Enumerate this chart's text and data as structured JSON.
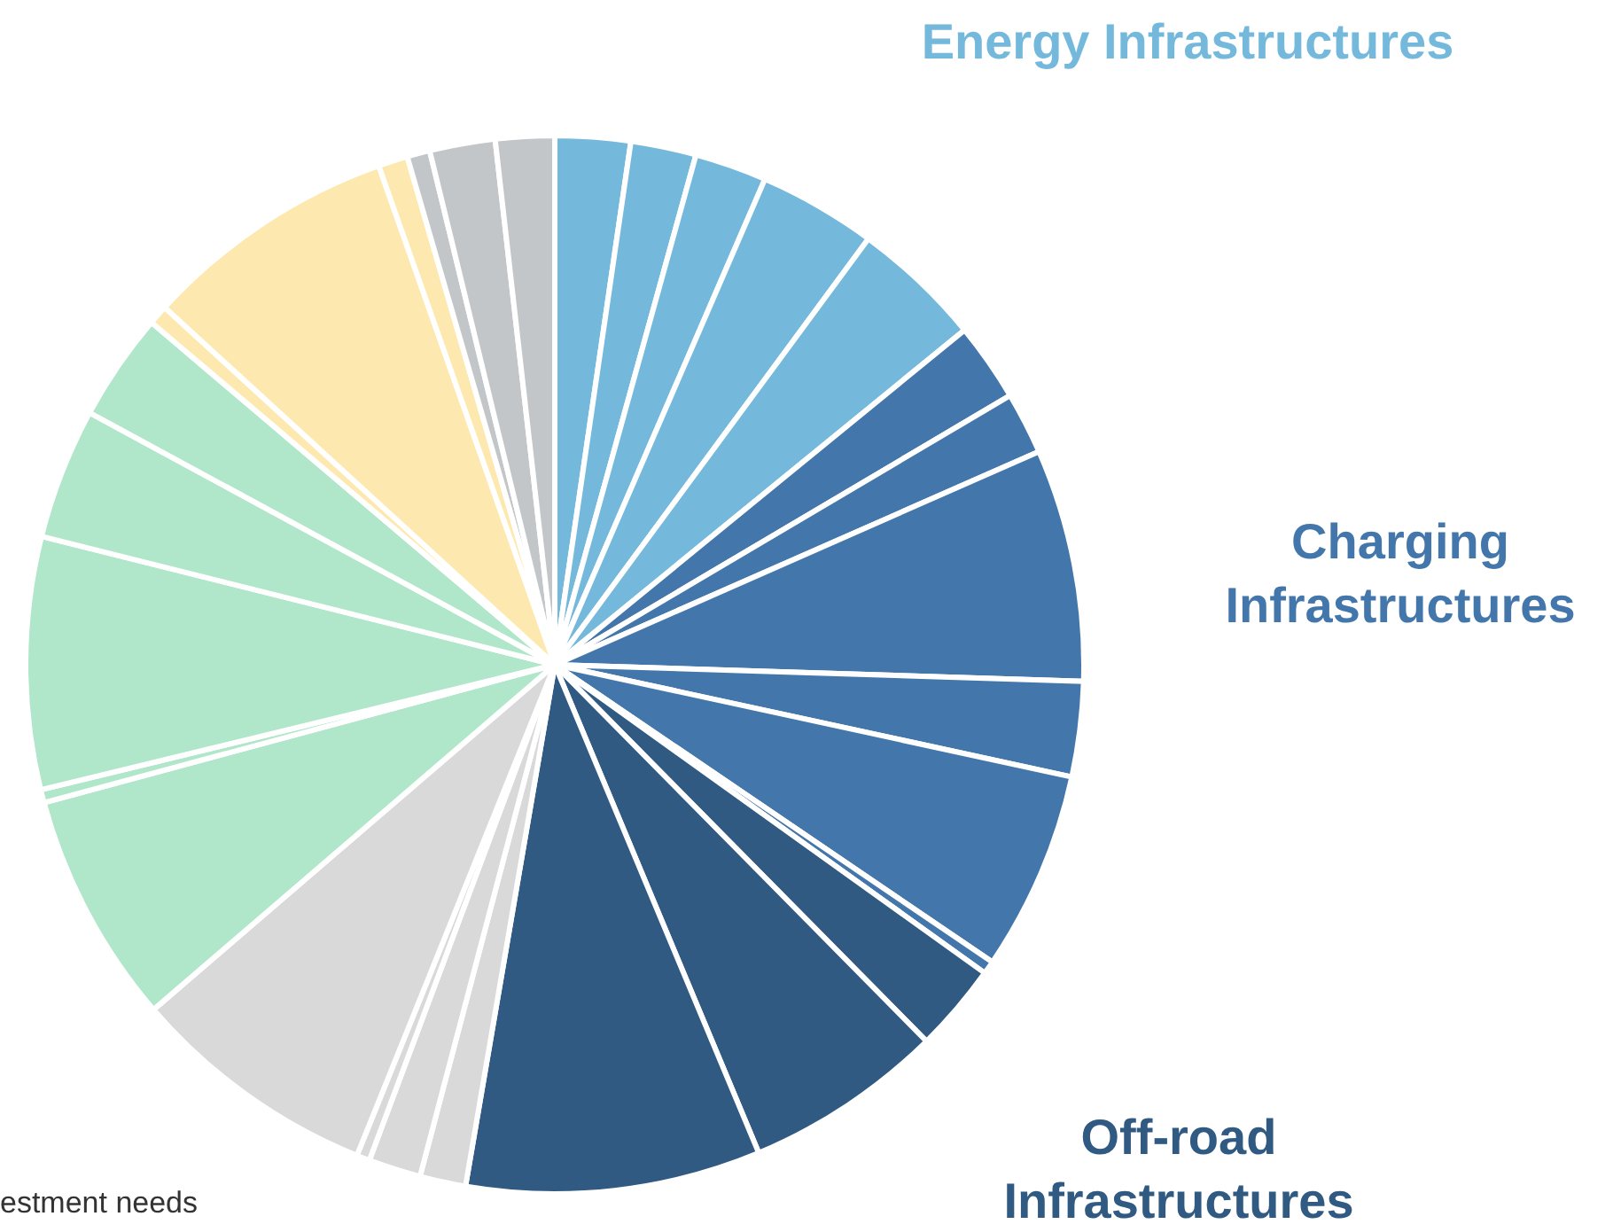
{
  "chart_data": {
    "type": "pie",
    "categories": [
      null,
      null,
      null,
      null,
      null,
      null,
      null,
      null,
      null,
      null,
      null,
      null,
      null,
      null,
      null,
      null,
      null,
      null,
      null,
      null,
      null,
      null,
      null,
      null,
      null,
      null,
      null,
      null,
      null
    ],
    "values": [
      2.3,
      2.0,
      2.2,
      3.6,
      4.0,
      2.4,
      1.9,
      7.1,
      2.9,
      6.1,
      0.4,
      2.7,
      6.1,
      9.0,
      1.4,
      1.6,
      0.4,
      7.6,
      7.1,
      0.4,
      7.7,
      4.0,
      3.3,
      0.6,
      7.8,
      0.9,
      0.7,
      2.0,
      1.8
    ],
    "colors": [
      "#74b9dc",
      "#74b9dc",
      "#74b9dc",
      "#74b9dc",
      "#74b9dc",
      "#4377ab",
      "#4377ab",
      "#4377ab",
      "#4377ab",
      "#4377ab",
      "#4377ab",
      "#305a82",
      "#305a82",
      "#305a82",
      "#d9d9d9",
      "#d9d9d9",
      "#d9d9d9",
      "#d9d9d9",
      "#b0e6c9",
      "#b0e6c9",
      "#b0e6c9",
      "#b0e6c9",
      "#b0e6c9",
      "#fde9b0",
      "#fde9b0",
      "#fde9b0",
      "#c3c6c9",
      "#c3c6c9",
      "#c3c6c9"
    ],
    "annotations": [
      "Energy Infrastructures",
      "Charging Infrastructures",
      "Off-road Infrastructures",
      "estment needs"
    ],
    "legend": false
  }
}
